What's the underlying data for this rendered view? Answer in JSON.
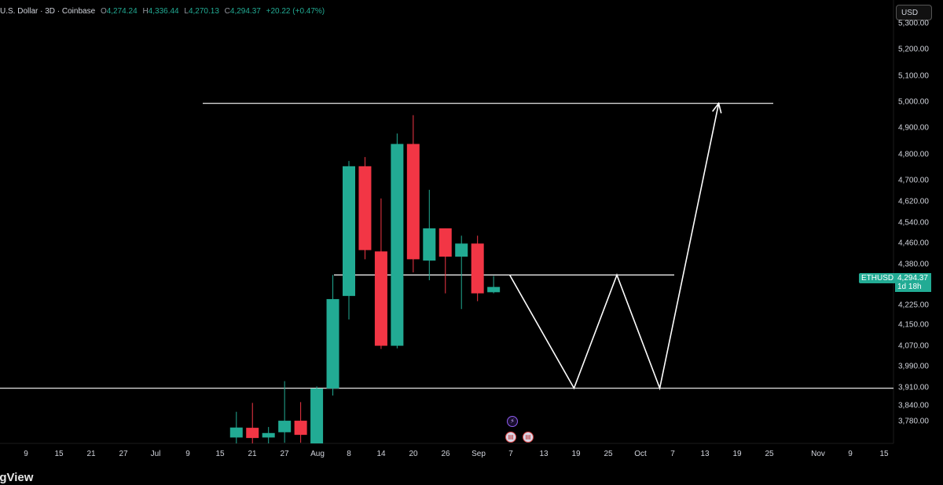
{
  "legend": {
    "title": "U.S. Dollar · 3D · Coinbase",
    "open_label": "O",
    "open": "4,274.24",
    "high_label": "H",
    "high": "4,336.44",
    "low_label": "L",
    "low": "4,270.13",
    "close_label": "C",
    "close": "4,294.37",
    "change": "+20.22 (+0.47%)"
  },
  "currency_button": "USD",
  "symbol_tag": "ETHUSD",
  "price_tag": {
    "price": "4,294.37",
    "countdown": "1d 18h"
  },
  "brand": "ingView",
  "events": {
    "icon1": "lightning-icon",
    "icon2": "us-flag-icon",
    "icon3": "us-flag-icon"
  },
  "colors": {
    "up": "#22ab94",
    "down": "#f23645",
    "background": "#000000",
    "drawing": "#ffffff"
  },
  "chart_data": {
    "type": "candlestick",
    "title": "",
    "symbol": "ETHUSD",
    "interval": "3D",
    "y_ticks": [
      "5,300.00",
      "5,200.00",
      "5,100.00",
      "5,000.00",
      "4,900.00",
      "4,800.00",
      "4,700.00",
      "4,620.00",
      "4,540.00",
      "4,460.00",
      "4,380.00",
      "4,225.00",
      "4,150.00",
      "4,070.00",
      "3,990.00",
      "3,910.00",
      "3,840.00",
      "3,780.00"
    ],
    "x_ticks": [
      "9",
      "15",
      "21",
      "27",
      "Jul",
      "9",
      "15",
      "21",
      "27",
      "Aug",
      "8",
      "14",
      "20",
      "26",
      "Sep",
      "7",
      "13",
      "19",
      "25",
      "Oct",
      "7",
      "13",
      "19",
      "25",
      "Nov",
      "9",
      "15"
    ],
    "candles": [
      {
        "date": "2025-07-18",
        "open": 3720,
        "high": 3818,
        "low": 3690,
        "close": 3758
      },
      {
        "date": "2025-07-21",
        "open": 3757,
        "high": 3852,
        "low": 3690,
        "close": 3718
      },
      {
        "date": "2025-07-24",
        "open": 3720,
        "high": 3760,
        "low": 3690,
        "close": 3737
      },
      {
        "date": "2025-07-27",
        "open": 3740,
        "high": 3935,
        "low": 3700,
        "close": 3784
      },
      {
        "date": "2025-07-30",
        "open": 3784,
        "high": 3855,
        "low": 3700,
        "close": 3730
      },
      {
        "date": "2025-08-02",
        "open": 3690,
        "high": 3915,
        "low": 3600,
        "close": 3907
      },
      {
        "date": "2025-08-05",
        "open": 3907,
        "high": 4340,
        "low": 3880,
        "close": 4248
      },
      {
        "date": "2025-08-08",
        "open": 4260,
        "high": 4775,
        "low": 4170,
        "close": 4755
      },
      {
        "date": "2025-08-11",
        "open": 4755,
        "high": 4790,
        "low": 4400,
        "close": 4435
      },
      {
        "date": "2025-08-14",
        "open": 4430,
        "high": 4632,
        "low": 4058,
        "close": 4070
      },
      {
        "date": "2025-08-17",
        "open": 4070,
        "high": 4880,
        "low": 4060,
        "close": 4840
      },
      {
        "date": "2025-08-20",
        "open": 4840,
        "high": 4950,
        "low": 4350,
        "close": 4400
      },
      {
        "date": "2025-08-23",
        "open": 4395,
        "high": 4665,
        "low": 4320,
        "close": 4518
      },
      {
        "date": "2025-08-26",
        "open": 4518,
        "high": 4518,
        "low": 4270,
        "close": 4410
      },
      {
        "date": "2025-08-29",
        "open": 4410,
        "high": 4490,
        "low": 4210,
        "close": 4460
      },
      {
        "date": "2025-09-01",
        "open": 4460,
        "high": 4490,
        "low": 4240,
        "close": 4270
      },
      {
        "date": "2025-09-04",
        "open": 4274.24,
        "high": 4336.44,
        "low": 4270.13,
        "close": 4294.37
      }
    ],
    "horizontal_lines": [
      {
        "price": 4995
      },
      {
        "price": 4340
      },
      {
        "price": 3908
      }
    ],
    "projection_path": [
      {
        "date": "2025-09-07",
        "price": 4340
      },
      {
        "date": "2025-09-19",
        "price": 3908
      },
      {
        "date": "2025-09-27",
        "price": 4340
      },
      {
        "date": "2025-10-05",
        "price": 3908
      },
      {
        "date": "2025-10-16",
        "price": 4995
      }
    ],
    "last_price": 4294.37
  }
}
